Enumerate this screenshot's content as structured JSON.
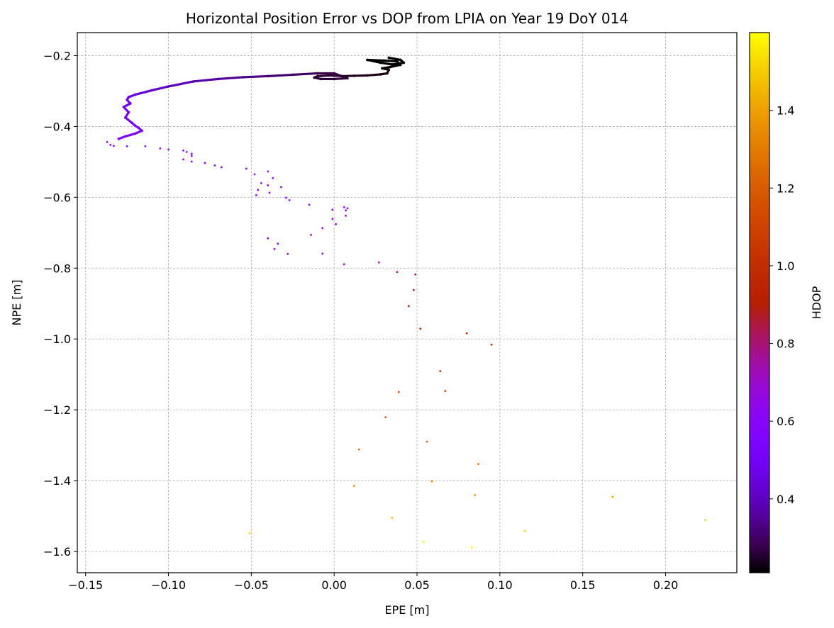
{
  "chart_data": {
    "type": "scatter",
    "title": "Horizontal Position Error vs DOP from LPIA on Year 19 DoY 014",
    "xlabel": "EPE [m]",
    "ylabel": "NPE [m]",
    "xlim": [
      -0.155,
      0.243
    ],
    "ylim": [
      -1.66,
      -0.135
    ],
    "xticks": [
      -0.15,
      -0.1,
      -0.05,
      0.0,
      0.05,
      0.1,
      0.15,
      0.2
    ],
    "xtick_labels": [
      "−0.15",
      "−0.10",
      "−0.05",
      "0.00",
      "0.05",
      "0.10",
      "0.15",
      "0.20"
    ],
    "yticks": [
      -0.2,
      -0.4,
      -0.6,
      -0.8,
      -1.0,
      -1.2,
      -1.4,
      -1.6
    ],
    "ytick_labels": [
      "−0.2",
      "−0.4",
      "−0.6",
      "−0.8",
      "−1.0",
      "−1.2",
      "−1.4",
      "−1.6"
    ],
    "grid": true,
    "colormap": "gnuplot",
    "colorbar": {
      "label": "HDOP",
      "range": [
        0.21,
        1.6
      ],
      "ticks": [
        0.4,
        0.6,
        0.8,
        1.0,
        1.2,
        1.4
      ],
      "tick_labels": [
        "0.4",
        "0.6",
        "0.8",
        "1.0",
        "1.2",
        "1.4"
      ]
    },
    "trace": [
      [
        0.033,
        -0.206
      ],
      [
        0.04,
        -0.212
      ],
      [
        0.042,
        -0.22
      ],
      [
        0.035,
        -0.225
      ],
      [
        0.028,
        -0.22
      ],
      [
        0.02,
        -0.212
      ],
      [
        0.03,
        -0.214
      ],
      [
        0.038,
        -0.216
      ],
      [
        0.04,
        -0.226
      ],
      [
        0.034,
        -0.232
      ],
      [
        0.029,
        -0.236
      ],
      [
        0.033,
        -0.24
      ],
      [
        0.032,
        -0.25
      ],
      [
        0.028,
        -0.253
      ],
      [
        0.02,
        -0.256
      ],
      [
        0.012,
        -0.257
      ],
      [
        0.005,
        -0.258
      ],
      [
        -0.003,
        -0.256
      ],
      [
        -0.01,
        -0.258
      ],
      [
        -0.012,
        -0.262
      ],
      [
        -0.008,
        -0.266
      ],
      [
        0.0,
        -0.266
      ],
      [
        0.008,
        -0.264
      ],
      [
        0.0,
        -0.25
      ],
      [
        -0.01,
        -0.25
      ],
      [
        -0.025,
        -0.254
      ],
      [
        -0.04,
        -0.258
      ],
      [
        -0.055,
        -0.261
      ],
      [
        -0.07,
        -0.266
      ],
      [
        -0.085,
        -0.273
      ],
      [
        -0.1,
        -0.287
      ],
      [
        -0.11,
        -0.298
      ],
      [
        -0.12,
        -0.31
      ],
      [
        -0.124,
        -0.317
      ],
      [
        -0.125,
        -0.325
      ],
      [
        -0.123,
        -0.335
      ],
      [
        -0.127,
        -0.345
      ],
      [
        -0.124,
        -0.36
      ],
      [
        -0.126,
        -0.375
      ],
      [
        -0.122,
        -0.39
      ],
      [
        -0.12,
        -0.398
      ],
      [
        -0.118,
        -0.404
      ],
      [
        -0.116,
        -0.412
      ],
      [
        -0.12,
        -0.42
      ],
      [
        -0.126,
        -0.428
      ],
      [
        -0.13,
        -0.435
      ]
    ],
    "trace_hdop": [
      0.21,
      0.21,
      0.21,
      0.21,
      0.21,
      0.21,
      0.21,
      0.21,
      0.21,
      0.21,
      0.21,
      0.22,
      0.22,
      0.23,
      0.23,
      0.24,
      0.24,
      0.25,
      0.25,
      0.25,
      0.26,
      0.26,
      0.26,
      0.27,
      0.28,
      0.3,
      0.32,
      0.34,
      0.36,
      0.38,
      0.4,
      0.42,
      0.44,
      0.45,
      0.46,
      0.47,
      0.48,
      0.49,
      0.5,
      0.51,
      0.52,
      0.53,
      0.53,
      0.54,
      0.55,
      0.56
    ],
    "points": [
      [
        -0.137,
        -0.444,
        0.57
      ],
      [
        -0.135,
        -0.452,
        0.57
      ],
      [
        -0.133,
        -0.455,
        0.57
      ],
      [
        -0.125,
        -0.456,
        0.58
      ],
      [
        -0.114,
        -0.456,
        0.58
      ],
      [
        -0.105,
        -0.462,
        0.59
      ],
      [
        -0.1,
        -0.465,
        0.59
      ],
      [
        -0.091,
        -0.468,
        0.6
      ],
      [
        -0.089,
        -0.472,
        0.6
      ],
      [
        -0.086,
        -0.477,
        0.6
      ],
      [
        -0.086,
        -0.483,
        0.6
      ],
      [
        -0.091,
        -0.493,
        0.6
      ],
      [
        -0.086,
        -0.499,
        0.61
      ],
      [
        -0.078,
        -0.503,
        0.61
      ],
      [
        -0.072,
        -0.51,
        0.61
      ],
      [
        -0.068,
        -0.515,
        0.62
      ],
      [
        -0.053,
        -0.519,
        0.62
      ],
      [
        -0.048,
        -0.535,
        0.62
      ],
      [
        -0.04,
        -0.527,
        0.63
      ],
      [
        -0.037,
        -0.546,
        0.63
      ],
      [
        -0.044,
        -0.56,
        0.63
      ],
      [
        -0.04,
        -0.566,
        0.63
      ],
      [
        -0.032,
        -0.571,
        0.64
      ],
      [
        -0.046,
        -0.579,
        0.64
      ],
      [
        -0.039,
        -0.587,
        0.64
      ],
      [
        -0.047,
        -0.594,
        0.64
      ],
      [
        -0.029,
        -0.601,
        0.65
      ],
      [
        -0.027,
        -0.608,
        0.65
      ],
      [
        -0.015,
        -0.621,
        0.65
      ],
      [
        -0.001,
        -0.635,
        0.66
      ],
      [
        0.006,
        -0.628,
        0.66
      ],
      [
        0.008,
        -0.631,
        0.66
      ],
      [
        0.007,
        -0.637,
        0.66
      ],
      [
        0.007,
        -0.652,
        0.66
      ],
      [
        -0.001,
        -0.661,
        0.67
      ],
      [
        0.001,
        -0.676,
        0.67
      ],
      [
        -0.007,
        -0.687,
        0.67
      ],
      [
        -0.014,
        -0.706,
        0.67
      ],
      [
        -0.04,
        -0.716,
        0.68
      ],
      [
        -0.034,
        -0.731,
        0.68
      ],
      [
        -0.036,
        -0.746,
        0.68
      ],
      [
        -0.028,
        -0.76,
        0.69
      ],
      [
        -0.007,
        -0.759,
        0.69
      ],
      [
        0.006,
        -0.789,
        0.72
      ],
      [
        0.027,
        -0.784,
        0.74
      ],
      [
        0.038,
        -0.811,
        0.78
      ],
      [
        0.049,
        -0.818,
        0.8
      ],
      [
        0.048,
        -0.862,
        0.86
      ],
      [
        0.045,
        -0.907,
        0.9
      ],
      [
        0.052,
        -0.971,
        0.96
      ],
      [
        0.08,
        -0.984,
        0.98
      ],
      [
        0.095,
        -1.016,
        1.02
      ],
      [
        0.064,
        -1.091,
        1.08
      ],
      [
        0.067,
        -1.147,
        1.12
      ],
      [
        0.039,
        -1.15,
        1.14
      ],
      [
        0.031,
        -1.221,
        1.18
      ],
      [
        0.056,
        -1.29,
        1.22
      ],
      [
        0.015,
        -1.312,
        1.26
      ],
      [
        0.087,
        -1.353,
        1.3
      ],
      [
        0.059,
        -1.402,
        1.33
      ],
      [
        0.012,
        -1.415,
        1.35
      ],
      [
        0.085,
        -1.441,
        1.38
      ],
      [
        0.168,
        -1.446,
        1.41
      ],
      [
        0.035,
        -1.505,
        1.47
      ],
      [
        0.224,
        -1.511,
        1.5
      ],
      [
        0.115,
        -1.542,
        1.53
      ],
      [
        -0.051,
        -1.548,
        1.55
      ],
      [
        0.054,
        -1.573,
        1.57
      ],
      [
        0.083,
        -1.589,
        1.59
      ]
    ]
  }
}
